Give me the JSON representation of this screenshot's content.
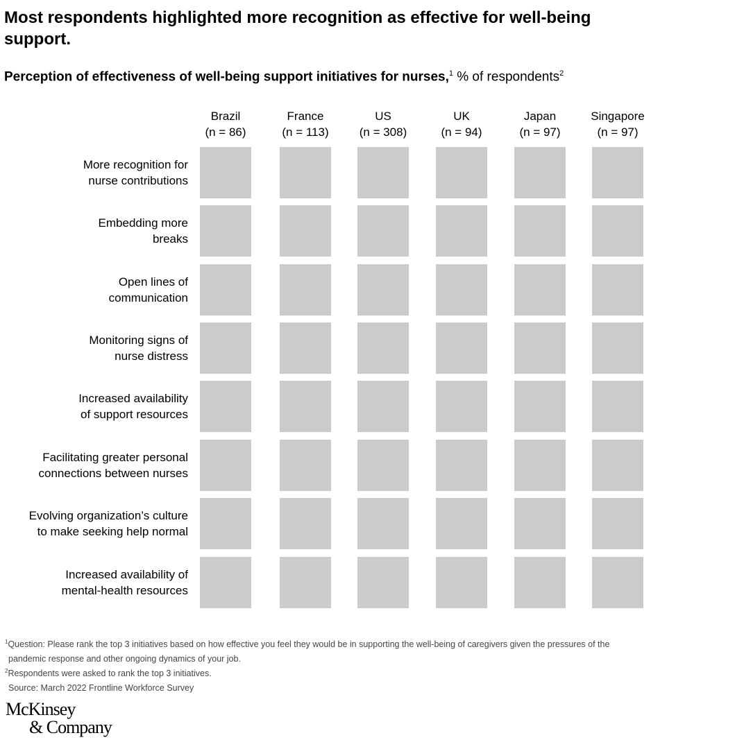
{
  "title": "Most respondents highlighted more recognition as effective for well-being support.",
  "subtitle": {
    "bold": "Perception of effectiveness of well-being support initiatives for nurses,",
    "sup1": "1",
    "unit": " % of respondents",
    "sup2": "2"
  },
  "chart_data": {
    "type": "heatmap",
    "columns": [
      {
        "name": "Brazil",
        "n": "(n = 86)"
      },
      {
        "name": "France",
        "n": "(n = 113)"
      },
      {
        "name": "US",
        "n": "(n = 308)"
      },
      {
        "name": "UK",
        "n": "(n = 94)"
      },
      {
        "name": "Japan",
        "n": "(n = 97)"
      },
      {
        "name": "Singapore",
        "n": "(n = 97)"
      }
    ],
    "rows": [
      [
        "More recognition for",
        "nurse contributions"
      ],
      [
        "Embedding more",
        "breaks"
      ],
      [
        "Open lines of",
        "communication"
      ],
      [
        "Monitoring signs of",
        "nurse distress"
      ],
      [
        "Increased availability",
        "of support resources"
      ],
      [
        "Facilitating greater personal",
        "connections between nurses"
      ],
      [
        "Evolving organization’s culture",
        "to make seeking help normal"
      ],
      [
        "Increased availability of",
        "mental-health resources"
      ]
    ],
    "values": null,
    "cell_color": "#cbcbcb"
  },
  "footnotes": [
    {
      "sup": "1",
      "text": "Question: Please rank the top 3 initiatives based on how effective you feel they would be in supporting the well-being of caregivers given the pressures of the"
    },
    {
      "sup": "",
      "text": "pandemic response and other ongoing dynamics of your job."
    },
    {
      "sup": "2",
      "text": "Respondents were asked to rank the top 3 initiatives."
    },
    {
      "sup": "",
      "text": "Source: March 2022 Frontline Workforce Survey"
    }
  ],
  "logo": {
    "line1": "McKinsey",
    "line2": "& Company"
  }
}
